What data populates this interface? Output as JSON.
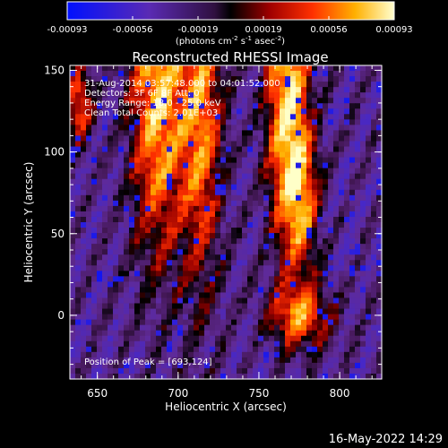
{
  "colorbar": {
    "tick_labels": [
      "-0.00093",
      "-0.00056",
      "-0.00019",
      "0.00019",
      "0.00056",
      "0.00093"
    ],
    "units_main": "(photons cm",
    "units_exp1": "-2",
    "units_mid1": " s",
    "units_exp2": "-1",
    "units_mid2": " asec",
    "units_exp3": "-2",
    "units_end": ")"
  },
  "title": "Reconstructed RHESSI Image",
  "annotation": {
    "line1": "31-Aug-2014 03:57:48.000 to 04:01:52.000",
    "line2": "Detectors: 3F 6F 8F  Att: 0",
    "line3": "Energy Range: 18.0 - 25.0 keV",
    "line4": "Clean     Total Counts: 2.01E+03",
    "peak": "Position of Peak = [693,124]"
  },
  "axes": {
    "xlabel": "Heliocentric X (arcsec)",
    "ylabel": "Heliocentric Y (arcsec)",
    "x_ticks": [
      "650",
      "700",
      "750",
      "800"
    ],
    "y_ticks": [
      "150",
      "100",
      "50",
      "0"
    ]
  },
  "footer": {
    "timestamp": "16-May-2022 14:29"
  },
  "image_data": {
    "x_range_arcsec": [
      633,
      826
    ],
    "y_range_arcsec": [
      -39,
      153
    ],
    "colormap": [
      "#0010ff",
      "#5a30b0",
      "#602a8a",
      "#000000",
      "#a00000",
      "#ff3000",
      "#ffb000",
      "#ffffc0"
    ],
    "peak_position_arcsec": [
      693,
      124
    ]
  }
}
